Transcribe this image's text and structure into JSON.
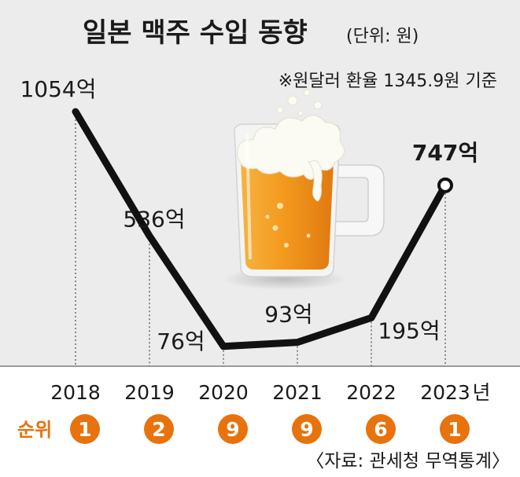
{
  "chart_data": {
    "type": "line",
    "title": "일본 맥주 수입 동향",
    "unit_note": "(단위: 원)",
    "note": "※원달러 환율 1345.9원 기준",
    "x": [
      "2018",
      "2019",
      "2020",
      "2021",
      "2022",
      "2023"
    ],
    "x_suffix": "년",
    "values": [
      1054,
      536,
      76,
      93,
      195,
      747
    ],
    "value_labels": [
      "1054억",
      "536억",
      "76억",
      "93억",
      "195억",
      "747억"
    ],
    "ylim": [
      0,
      1100
    ],
    "grid": false,
    "rank_label": "순위",
    "ranks": [
      "1",
      "2",
      "9",
      "9",
      "6",
      "1"
    ],
    "source": "〈자료: 관세청 무역통계〉"
  },
  "colors": {
    "panel": "#ececec",
    "line": "#111111",
    "accent": "#e8720c",
    "beer": "#f39a1e",
    "foam": "#fbfaf3"
  },
  "icons": [
    "beer-mug-icon"
  ]
}
